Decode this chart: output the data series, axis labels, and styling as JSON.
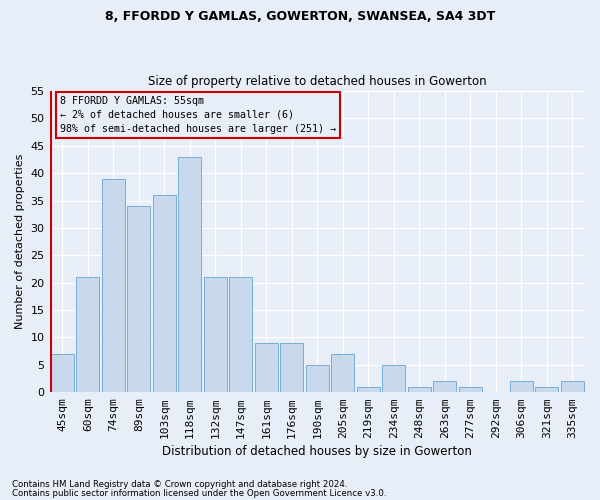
{
  "title1": "8, FFORDD Y GAMLAS, GOWERTON, SWANSEA, SA4 3DT",
  "title2": "Size of property relative to detached houses in Gowerton",
  "xlabel": "Distribution of detached houses by size in Gowerton",
  "ylabel": "Number of detached properties",
  "categories": [
    "45sqm",
    "60sqm",
    "74sqm",
    "89sqm",
    "103sqm",
    "118sqm",
    "132sqm",
    "147sqm",
    "161sqm",
    "176sqm",
    "190sqm",
    "205sqm",
    "219sqm",
    "234sqm",
    "248sqm",
    "263sqm",
    "277sqm",
    "292sqm",
    "306sqm",
    "321sqm",
    "335sqm"
  ],
  "values": [
    7,
    21,
    39,
    34,
    36,
    43,
    21,
    21,
    9,
    9,
    5,
    7,
    1,
    5,
    1,
    2,
    1,
    0,
    2,
    1,
    2
  ],
  "bar_color": "#c9d9ed",
  "bar_edge_color": "#7aadd4",
  "highlight_color": "#cc0000",
  "annotation_line1": "8 FFORDD Y GAMLAS: 55sqm",
  "annotation_line2": "← 2% of detached houses are smaller (6)",
  "annotation_line3": "98% of semi-detached houses are larger (251) →",
  "annotation_box_color": "#cc0000",
  "ylim": [
    0,
    55
  ],
  "yticks": [
    0,
    5,
    10,
    15,
    20,
    25,
    30,
    35,
    40,
    45,
    50,
    55
  ],
  "footnote1": "Contains HM Land Registry data © Crown copyright and database right 2024.",
  "footnote2": "Contains public sector information licensed under the Open Government Licence v3.0.",
  "background_color": "#e8eef7",
  "grid_color": "#ffffff"
}
